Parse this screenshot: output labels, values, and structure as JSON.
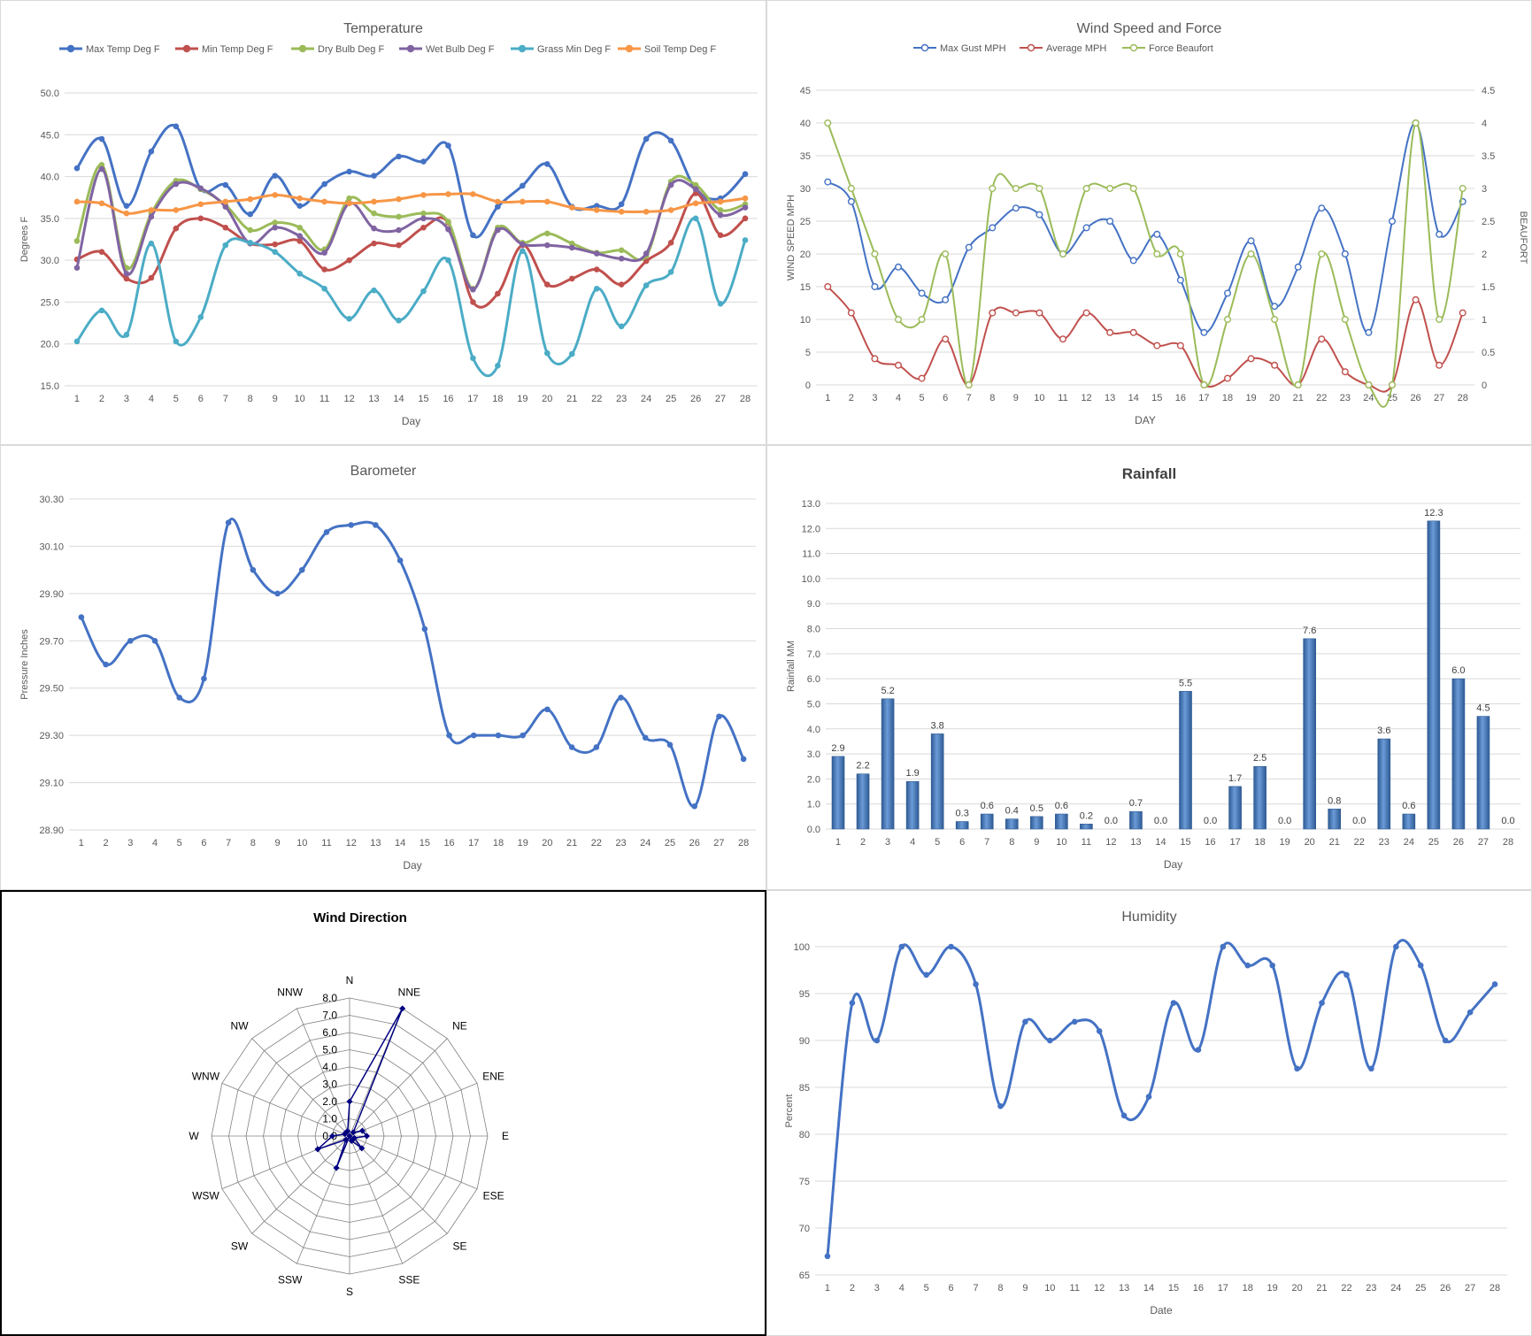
{
  "chart_data": [
    {
      "id": "temperature",
      "type": "line",
      "title": "Temperature",
      "xlabel": "Day",
      "ylabel": "Degrees F",
      "ylim": [
        15,
        50
      ],
      "yticks": [
        "15.0",
        "20.0",
        "25.0",
        "30.0",
        "35.0",
        "40.0",
        "45.0",
        "50.0"
      ],
      "x": [
        1,
        2,
        3,
        4,
        5,
        6,
        7,
        8,
        9,
        10,
        11,
        12,
        13,
        14,
        15,
        16,
        17,
        18,
        19,
        20,
        21,
        22,
        23,
        24,
        25,
        26,
        27,
        28
      ],
      "legend_position": "top",
      "series": [
        {
          "name": "Max Temp Deg F",
          "color": "#4472c4",
          "values": [
            41,
            44.5,
            36.5,
            43,
            46,
            38.5,
            39,
            35.5,
            40.1,
            36.5,
            39.1,
            40.6,
            40.1,
            42.4,
            41.8,
            43.7,
            33,
            36.4,
            38.9,
            41.5,
            36.4,
            36.5,
            36.7,
            44.5,
            44.3,
            38.5,
            37.4,
            40.3
          ]
        },
        {
          "name": "Min Temp Deg F",
          "color": "#c0504d",
          "values": [
            30.1,
            31,
            27.8,
            27.9,
            33.8,
            35,
            33.9,
            32,
            31.9,
            32.3,
            28.9,
            30,
            32,
            31.8,
            33.9,
            34.5,
            25,
            26,
            31.8,
            27.1,
            27.8,
            28.9,
            27.1,
            29.9,
            32.1,
            38,
            33,
            35
          ]
        },
        {
          "name": "Dry Bulb Deg F",
          "color": "#9bbb59",
          "values": [
            32.3,
            41.4,
            29.1,
            35.6,
            39.5,
            38.5,
            36.6,
            33.6,
            34.5,
            33.9,
            31.3,
            37.4,
            35.6,
            35.2,
            35.6,
            34.6,
            26.6,
            33.9,
            32.1,
            33.2,
            32,
            30.9,
            31.2,
            30.5,
            39.4,
            39,
            36,
            36.7
          ]
        },
        {
          "name": "Wet Bulb Deg F",
          "color": "#8064a2",
          "values": [
            29.1,
            40.9,
            28.4,
            35.2,
            39.1,
            38.6,
            36.4,
            32,
            33.9,
            32.9,
            30.9,
            36.8,
            33.8,
            33.6,
            35,
            33.7,
            26.5,
            33.6,
            31.9,
            31.8,
            31.5,
            30.8,
            30.2,
            30.8,
            39,
            38.5,
            35.4,
            36.3
          ]
        },
        {
          "name": "Grass Min Deg F",
          "color": "#4bacc6",
          "values": [
            20.3,
            24,
            21.1,
            32,
            20.3,
            23.2,
            31.8,
            32.1,
            31,
            28.4,
            26.6,
            23,
            26.4,
            22.8,
            26.3,
            30,
            18.3,
            17.4,
            31.1,
            18.9,
            18.8,
            26.6,
            22.1,
            27,
            28.6,
            35,
            24.8,
            32.4
          ]
        },
        {
          "name": "Soil Temp Deg F",
          "color": "#f79646",
          "values": [
            37,
            36.8,
            35.6,
            36,
            36,
            36.7,
            37,
            37.3,
            37.8,
            37.4,
            37,
            36.8,
            37,
            37.3,
            37.8,
            37.9,
            37.9,
            37,
            37,
            37,
            36.3,
            36,
            35.8,
            35.8,
            36,
            36.8,
            37,
            37.4
          ]
        }
      ]
    },
    {
      "id": "wind",
      "type": "line",
      "title": "Wind Speed and Force",
      "xlabel": "DAY",
      "ylabel": "WIND SPEED MPH",
      "y2label": "BEAUFORT",
      "ylim": [
        0,
        45
      ],
      "y2lim": [
        0,
        4.5
      ],
      "yticks": [
        "0",
        "5",
        "10",
        "15",
        "20",
        "25",
        "30",
        "35",
        "40",
        "45"
      ],
      "y2ticks": [
        "0",
        "0.5",
        "1",
        "1.5",
        "2",
        "2.5",
        "3",
        "3.5",
        "4",
        "4.5"
      ],
      "x": [
        1,
        2,
        3,
        4,
        5,
        6,
        7,
        8,
        9,
        10,
        11,
        12,
        13,
        14,
        15,
        16,
        17,
        18,
        19,
        20,
        21,
        22,
        23,
        24,
        25,
        26,
        27,
        28
      ],
      "legend_position": "top",
      "series": [
        {
          "name": "Max Gust MPH",
          "color": "#4472c4",
          "axis": "left",
          "values": [
            31,
            28,
            15,
            18,
            14,
            13,
            21,
            24,
            27,
            26,
            20,
            24,
            25,
            19,
            23,
            16,
            8,
            14,
            22,
            12,
            18,
            27,
            20,
            8,
            25,
            40,
            23,
            28
          ]
        },
        {
          "name": "Average MPH",
          "color": "#c0504d",
          "axis": "left",
          "values": [
            15,
            11,
            4,
            3,
            1,
            7,
            0,
            11,
            11,
            11,
            7,
            11,
            8,
            8,
            6,
            6,
            0,
            1,
            4,
            3,
            0,
            7,
            2,
            0,
            0,
            13,
            3,
            11
          ]
        },
        {
          "name": "Force Beaufort",
          "color": "#9bbb59",
          "axis": "right",
          "values": [
            4,
            3,
            2,
            1,
            1,
            2,
            0,
            3,
            3,
            3,
            2,
            3,
            3,
            3,
            2,
            2,
            0,
            1,
            2,
            1,
            0,
            2,
            1,
            0,
            0,
            4,
            1,
            3
          ]
        }
      ]
    },
    {
      "id": "barometer",
      "type": "line",
      "title": "Barometer",
      "xlabel": "Day",
      "ylabel": "Pressure Inches",
      "ylim": [
        28.9,
        30.3
      ],
      "yticks": [
        "28.90",
        "29.10",
        "29.30",
        "29.50",
        "29.70",
        "29.90",
        "30.10",
        "30.30"
      ],
      "x": [
        1,
        2,
        3,
        4,
        5,
        6,
        7,
        8,
        9,
        10,
        11,
        12,
        13,
        14,
        15,
        16,
        17,
        18,
        19,
        20,
        21,
        22,
        23,
        24,
        25,
        26,
        27,
        28
      ],
      "series": [
        {
          "name": "",
          "color": "#4472c4",
          "values": [
            29.8,
            29.6,
            29.7,
            29.7,
            29.46,
            29.54,
            30.2,
            30,
            29.9,
            30,
            30.16,
            30.19,
            30.19,
            30.04,
            29.75,
            29.3,
            29.3,
            29.3,
            29.3,
            29.41,
            29.25,
            29.25,
            29.46,
            29.29,
            29.26,
            29,
            29.38,
            29.2
          ]
        }
      ]
    },
    {
      "id": "rainfall",
      "type": "bar",
      "title": "Rainfall",
      "xlabel": "Day",
      "ylabel": "Rainfall MM",
      "ylim": [
        0,
        13
      ],
      "yticks": [
        "0.0",
        "1.0",
        "2.0",
        "3.0",
        "4.0",
        "5.0",
        "6.0",
        "7.0",
        "8.0",
        "9.0",
        "10.0",
        "11.0",
        "12.0",
        "13.0"
      ],
      "categories": [
        "1",
        "2",
        "3",
        "4",
        "5",
        "6",
        "7",
        "8",
        "9",
        "10",
        "11",
        "12",
        "13",
        "14",
        "15",
        "16",
        "17",
        "18",
        "19",
        "20",
        "21",
        "22",
        "23",
        "24",
        "25",
        "26",
        "27",
        "28"
      ],
      "values": [
        2.9,
        2.2,
        5.2,
        1.9,
        3.8,
        0.3,
        0.6,
        0.4,
        0.5,
        0.6,
        0.2,
        0.0,
        0.7,
        0.0,
        5.5,
        0.0,
        1.7,
        2.5,
        0.0,
        7.6,
        0.8,
        0.0,
        3.6,
        0.6,
        12.3,
        6.0,
        4.5,
        0.0
      ],
      "labels": [
        "2.9",
        "2.2",
        "5.2",
        "1.9",
        "3.8",
        "0.3",
        "0.6",
        "0.4",
        "0.5",
        "0.6",
        "0.2",
        "0.0",
        "0.7",
        "0.0",
        "5.5",
        "0.0",
        "1.7",
        "2.5",
        "0.0",
        "7.6",
        "0.8",
        "0.0",
        "3.6",
        "0.6",
        "12.3",
        "6.0",
        "4.5",
        "0.0"
      ],
      "color": "#4f81bd"
    },
    {
      "id": "wind_direction",
      "type": "radar",
      "title": "Wind Direction",
      "rlim": [
        0,
        8
      ],
      "rticks": [
        "0.0",
        "1.0",
        "2.0",
        "3.0",
        "4.0",
        "5.0",
        "6.0",
        "7.0",
        "8.0"
      ],
      "categories": [
        "N",
        "NNE",
        "NE",
        "ENE",
        "E",
        "ESE",
        "SE",
        "SSE",
        "S",
        "SSW",
        "SW",
        "WSW",
        "W",
        "WNW",
        "NW",
        "NNW"
      ],
      "values": [
        2,
        8,
        0.3,
        0.8,
        1,
        0.3,
        1,
        0.3,
        0,
        2,
        0.3,
        2,
        1,
        0.3,
        0.3,
        0.3
      ],
      "color": "#000080"
    },
    {
      "id": "humidity",
      "type": "line",
      "title": "Humidity",
      "xlabel": "Date",
      "ylabel": "Percent",
      "ylim": [
        65,
        100
      ],
      "yticks": [
        "65",
        "70",
        "75",
        "80",
        "85",
        "90",
        "95",
        "100"
      ],
      "x": [
        1,
        2,
        3,
        4,
        5,
        6,
        7,
        8,
        9,
        10,
        11,
        12,
        13,
        14,
        15,
        16,
        17,
        18,
        19,
        20,
        21,
        22,
        23,
        24,
        25,
        26,
        27,
        28
      ],
      "series": [
        {
          "name": "",
          "color": "#4472c4",
          "values": [
            67,
            94,
            90,
            100,
            97,
            100,
            96,
            83,
            92,
            90,
            92,
            91,
            82,
            84,
            94,
            89,
            100,
            98,
            98,
            87,
            94,
            97,
            87,
            100,
            98,
            90,
            93,
            96
          ]
        }
      ]
    }
  ]
}
